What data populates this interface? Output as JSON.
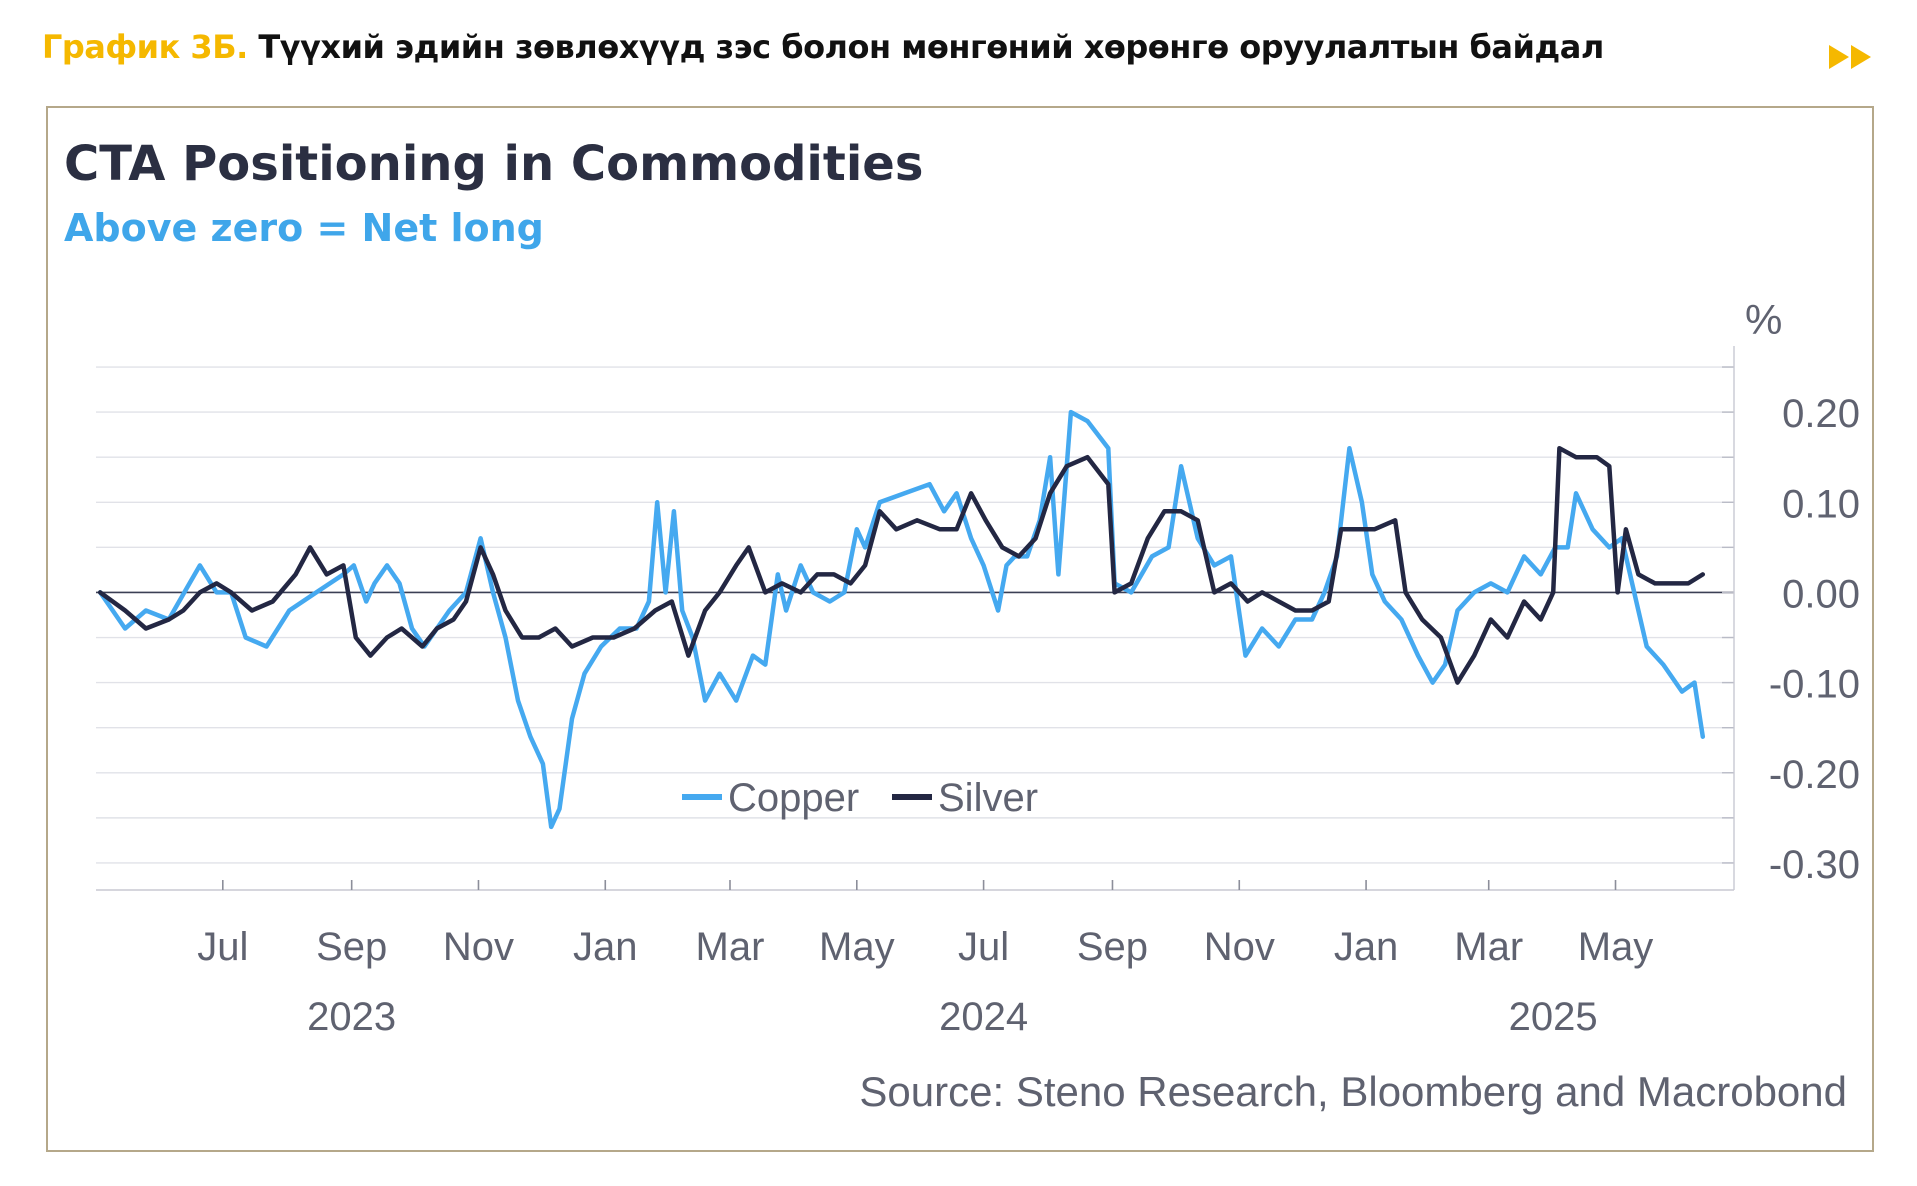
{
  "header": {
    "number": "График 3Б.",
    "title": "Түүхий эдийн зөвлөхүүд зэс болон мөнгөний хөрөнгө оруулалтын байдал",
    "arrow_icon": "double-chevron-right-icon",
    "accent_color": "#f5b800"
  },
  "chart_data": {
    "type": "line",
    "title": "CTA Positioning in Commodities",
    "subtitle": "Above zero = Net long",
    "ylabel": "%",
    "ylim": [
      -0.33,
      0.26
    ],
    "y_ticks": [
      0.2,
      0.1,
      0.0,
      -0.1,
      -0.2,
      -0.3
    ],
    "y_tick_labels": [
      "0.20",
      "0.10",
      "0.00",
      "-0.10",
      "-0.20",
      "-0.30"
    ],
    "x_range": [
      "2023-05-01",
      "2025-06-27"
    ],
    "x_ticks": [
      {
        "date": "2023-07-01",
        "label": "Jul"
      },
      {
        "date": "2023-09-01",
        "label": "Sep"
      },
      {
        "date": "2023-11-01",
        "label": "Nov"
      },
      {
        "date": "2024-01-01",
        "label": "Jan"
      },
      {
        "date": "2024-03-01",
        "label": "Mar"
      },
      {
        "date": "2024-05-01",
        "label": "May"
      },
      {
        "date": "2024-07-01",
        "label": "Jul"
      },
      {
        "date": "2024-09-01",
        "label": "Sep"
      },
      {
        "date": "2024-11-01",
        "label": "Nov"
      },
      {
        "date": "2025-01-01",
        "label": "Jan"
      },
      {
        "date": "2025-03-01",
        "label": "Mar"
      },
      {
        "date": "2025-05-01",
        "label": "May"
      }
    ],
    "year_labels": [
      {
        "date": "2023-09-01",
        "label": "2023"
      },
      {
        "date": "2024-07-01",
        "label": "2024"
      },
      {
        "date": "2025-04-01",
        "label": "2025"
      }
    ],
    "legend_position": "bottom-center",
    "series": [
      {
        "name": "Copper",
        "color": "#45a9f0",
        "points": [
          [
            "2023-05-03",
            0.0
          ],
          [
            "2023-05-15",
            -0.04
          ],
          [
            "2023-05-25",
            -0.02
          ],
          [
            "2023-06-05",
            -0.03
          ],
          [
            "2023-06-15",
            0.01
          ],
          [
            "2023-06-20",
            0.03
          ],
          [
            "2023-06-28",
            0.0
          ],
          [
            "2023-07-05",
            0.0
          ],
          [
            "2023-07-12",
            -0.05
          ],
          [
            "2023-07-22",
            -0.06
          ],
          [
            "2023-08-02",
            -0.02
          ],
          [
            "2023-08-15",
            0.0
          ],
          [
            "2023-08-28",
            0.02
          ],
          [
            "2023-09-02",
            0.03
          ],
          [
            "2023-09-08",
            -0.01
          ],
          [
            "2023-09-12",
            0.01
          ],
          [
            "2023-09-18",
            0.03
          ],
          [
            "2023-09-24",
            0.01
          ],
          [
            "2023-09-30",
            -0.04
          ],
          [
            "2023-10-06",
            -0.06
          ],
          [
            "2023-10-12",
            -0.04
          ],
          [
            "2023-10-18",
            -0.02
          ],
          [
            "2023-10-26",
            0.0
          ],
          [
            "2023-11-02",
            0.06
          ],
          [
            "2023-11-08",
            0.0
          ],
          [
            "2023-11-14",
            -0.05
          ],
          [
            "2023-11-20",
            -0.12
          ],
          [
            "2023-11-26",
            -0.16
          ],
          [
            "2023-12-02",
            -0.19
          ],
          [
            "2023-12-06",
            -0.26
          ],
          [
            "2023-12-10",
            -0.24
          ],
          [
            "2023-12-16",
            -0.14
          ],
          [
            "2023-12-22",
            -0.09
          ],
          [
            "2023-12-30",
            -0.06
          ],
          [
            "2024-01-08",
            -0.04
          ],
          [
            "2024-01-16",
            -0.04
          ],
          [
            "2024-01-22",
            -0.01
          ],
          [
            "2024-01-26",
            0.1
          ],
          [
            "2024-01-30",
            0.0
          ],
          [
            "2024-02-03",
            0.09
          ],
          [
            "2024-02-07",
            -0.02
          ],
          [
            "2024-02-12",
            -0.05
          ],
          [
            "2024-02-18",
            -0.12
          ],
          [
            "2024-02-25",
            -0.09
          ],
          [
            "2024-03-04",
            -0.12
          ],
          [
            "2024-03-12",
            -0.07
          ],
          [
            "2024-03-18",
            -0.08
          ],
          [
            "2024-03-24",
            0.02
          ],
          [
            "2024-03-28",
            -0.02
          ],
          [
            "2024-04-04",
            0.03
          ],
          [
            "2024-04-10",
            0.0
          ],
          [
            "2024-04-18",
            -0.01
          ],
          [
            "2024-04-25",
            0.0
          ],
          [
            "2024-05-01",
            0.07
          ],
          [
            "2024-05-05",
            0.05
          ],
          [
            "2024-05-12",
            0.1
          ],
          [
            "2024-05-24",
            0.11
          ],
          [
            "2024-06-05",
            0.12
          ],
          [
            "2024-06-12",
            0.09
          ],
          [
            "2024-06-18",
            0.11
          ],
          [
            "2024-06-25",
            0.06
          ],
          [
            "2024-07-01",
            0.03
          ],
          [
            "2024-07-08",
            -0.02
          ],
          [
            "2024-07-12",
            0.03
          ],
          [
            "2024-07-16",
            0.04
          ],
          [
            "2024-07-22",
            0.04
          ],
          [
            "2024-07-28",
            0.08
          ],
          [
            "2024-08-02",
            0.15
          ],
          [
            "2024-08-06",
            0.02
          ],
          [
            "2024-08-12",
            0.2
          ],
          [
            "2024-08-20",
            0.19
          ],
          [
            "2024-08-30",
            0.16
          ],
          [
            "2024-09-02",
            0.01
          ],
          [
            "2024-09-10",
            0.0
          ],
          [
            "2024-09-20",
            0.04
          ],
          [
            "2024-09-28",
            0.05
          ],
          [
            "2024-10-04",
            0.14
          ],
          [
            "2024-10-12",
            0.06
          ],
          [
            "2024-10-20",
            0.03
          ],
          [
            "2024-10-28",
            0.04
          ],
          [
            "2024-11-04",
            -0.07
          ],
          [
            "2024-11-12",
            -0.04
          ],
          [
            "2024-11-20",
            -0.06
          ],
          [
            "2024-11-28",
            -0.03
          ],
          [
            "2024-12-06",
            -0.03
          ],
          [
            "2024-12-12",
            0.0
          ],
          [
            "2024-12-18",
            0.04
          ],
          [
            "2024-12-24",
            0.16
          ],
          [
            "2024-12-30",
            0.1
          ],
          [
            "2025-01-04",
            0.02
          ],
          [
            "2025-01-10",
            -0.01
          ],
          [
            "2025-01-18",
            -0.03
          ],
          [
            "2025-01-26",
            -0.07
          ],
          [
            "2025-02-02",
            -0.1
          ],
          [
            "2025-02-08",
            -0.08
          ],
          [
            "2025-02-14",
            -0.02
          ],
          [
            "2025-02-22",
            0.0
          ],
          [
            "2025-03-02",
            0.01
          ],
          [
            "2025-03-10",
            0.0
          ],
          [
            "2025-03-18",
            0.04
          ],
          [
            "2025-03-26",
            0.02
          ],
          [
            "2025-04-02",
            0.05
          ],
          [
            "2025-04-08",
            0.05
          ],
          [
            "2025-04-12",
            0.11
          ],
          [
            "2025-04-20",
            0.07
          ],
          [
            "2025-04-28",
            0.05
          ],
          [
            "2025-05-04",
            0.06
          ],
          [
            "2025-05-10",
            0.0
          ],
          [
            "2025-05-16",
            -0.06
          ],
          [
            "2025-05-24",
            -0.08
          ],
          [
            "2025-06-02",
            -0.11
          ],
          [
            "2025-06-08",
            -0.1
          ],
          [
            "2025-06-12",
            -0.16
          ]
        ]
      },
      {
        "name": "Silver",
        "color": "#232743",
        "points": [
          [
            "2023-05-03",
            0.0
          ],
          [
            "2023-05-15",
            -0.02
          ],
          [
            "2023-05-25",
            -0.04
          ],
          [
            "2023-06-05",
            -0.03
          ],
          [
            "2023-06-12",
            -0.02
          ],
          [
            "2023-06-20",
            0.0
          ],
          [
            "2023-06-28",
            0.01
          ],
          [
            "2023-07-05",
            0.0
          ],
          [
            "2023-07-15",
            -0.02
          ],
          [
            "2023-07-25",
            -0.01
          ],
          [
            "2023-08-05",
            0.02
          ],
          [
            "2023-08-12",
            0.05
          ],
          [
            "2023-08-20",
            0.02
          ],
          [
            "2023-08-28",
            0.03
          ],
          [
            "2023-09-03",
            -0.05
          ],
          [
            "2023-09-10",
            -0.07
          ],
          [
            "2023-09-18",
            -0.05
          ],
          [
            "2023-09-25",
            -0.04
          ],
          [
            "2023-10-05",
            -0.06
          ],
          [
            "2023-10-12",
            -0.04
          ],
          [
            "2023-10-20",
            -0.03
          ],
          [
            "2023-10-26",
            -0.01
          ],
          [
            "2023-11-02",
            0.05
          ],
          [
            "2023-11-08",
            0.02
          ],
          [
            "2023-11-14",
            -0.02
          ],
          [
            "2023-11-22",
            -0.05
          ],
          [
            "2023-11-30",
            -0.05
          ],
          [
            "2023-12-08",
            -0.04
          ],
          [
            "2023-12-16",
            -0.06
          ],
          [
            "2023-12-26",
            -0.05
          ],
          [
            "2024-01-05",
            -0.05
          ],
          [
            "2024-01-15",
            -0.04
          ],
          [
            "2024-01-25",
            -0.02
          ],
          [
            "2024-02-02",
            -0.01
          ],
          [
            "2024-02-10",
            -0.07
          ],
          [
            "2024-02-18",
            -0.02
          ],
          [
            "2024-02-25",
            0.0
          ],
          [
            "2024-03-04",
            0.03
          ],
          [
            "2024-03-10",
            0.05
          ],
          [
            "2024-03-18",
            0.0
          ],
          [
            "2024-03-26",
            0.01
          ],
          [
            "2024-04-04",
            0.0
          ],
          [
            "2024-04-12",
            0.02
          ],
          [
            "2024-04-20",
            0.02
          ],
          [
            "2024-04-28",
            0.01
          ],
          [
            "2024-05-05",
            0.03
          ],
          [
            "2024-05-12",
            0.09
          ],
          [
            "2024-05-20",
            0.07
          ],
          [
            "2024-05-30",
            0.08
          ],
          [
            "2024-06-10",
            0.07
          ],
          [
            "2024-06-18",
            0.07
          ],
          [
            "2024-06-25",
            0.11
          ],
          [
            "2024-07-02",
            0.08
          ],
          [
            "2024-07-10",
            0.05
          ],
          [
            "2024-07-18",
            0.04
          ],
          [
            "2024-07-26",
            0.06
          ],
          [
            "2024-08-02",
            0.11
          ],
          [
            "2024-08-10",
            0.14
          ],
          [
            "2024-08-20",
            0.15
          ],
          [
            "2024-08-30",
            0.12
          ],
          [
            "2024-09-02",
            0.0
          ],
          [
            "2024-09-10",
            0.01
          ],
          [
            "2024-09-18",
            0.06
          ],
          [
            "2024-09-26",
            0.09
          ],
          [
            "2024-10-04",
            0.09
          ],
          [
            "2024-10-12",
            0.08
          ],
          [
            "2024-10-20",
            0.0
          ],
          [
            "2024-10-28",
            0.01
          ],
          [
            "2024-11-05",
            -0.01
          ],
          [
            "2024-11-12",
            0.0
          ],
          [
            "2024-11-20",
            -0.01
          ],
          [
            "2024-11-28",
            -0.02
          ],
          [
            "2024-12-06",
            -0.02
          ],
          [
            "2024-12-14",
            -0.01
          ],
          [
            "2024-12-20",
            0.07
          ],
          [
            "2024-12-26",
            0.07
          ],
          [
            "2025-01-05",
            0.07
          ],
          [
            "2025-01-15",
            0.08
          ],
          [
            "2025-01-20",
            0.0
          ],
          [
            "2025-01-28",
            -0.03
          ],
          [
            "2025-02-06",
            -0.05
          ],
          [
            "2025-02-14",
            -0.1
          ],
          [
            "2025-02-22",
            -0.07
          ],
          [
            "2025-03-02",
            -0.03
          ],
          [
            "2025-03-10",
            -0.05
          ],
          [
            "2025-03-18",
            -0.01
          ],
          [
            "2025-03-26",
            -0.03
          ],
          [
            "2025-04-01",
            0.0
          ],
          [
            "2025-04-04",
            0.16
          ],
          [
            "2025-04-12",
            0.15
          ],
          [
            "2025-04-22",
            0.15
          ],
          [
            "2025-04-28",
            0.14
          ],
          [
            "2025-05-02",
            0.0
          ],
          [
            "2025-05-06",
            0.07
          ],
          [
            "2025-05-12",
            0.02
          ],
          [
            "2025-05-20",
            0.01
          ],
          [
            "2025-05-28",
            0.01
          ],
          [
            "2025-06-05",
            0.01
          ],
          [
            "2025-06-12",
            0.02
          ]
        ]
      }
    ],
    "source": "Source: Steno Research, Bloomberg and Macrobond"
  }
}
